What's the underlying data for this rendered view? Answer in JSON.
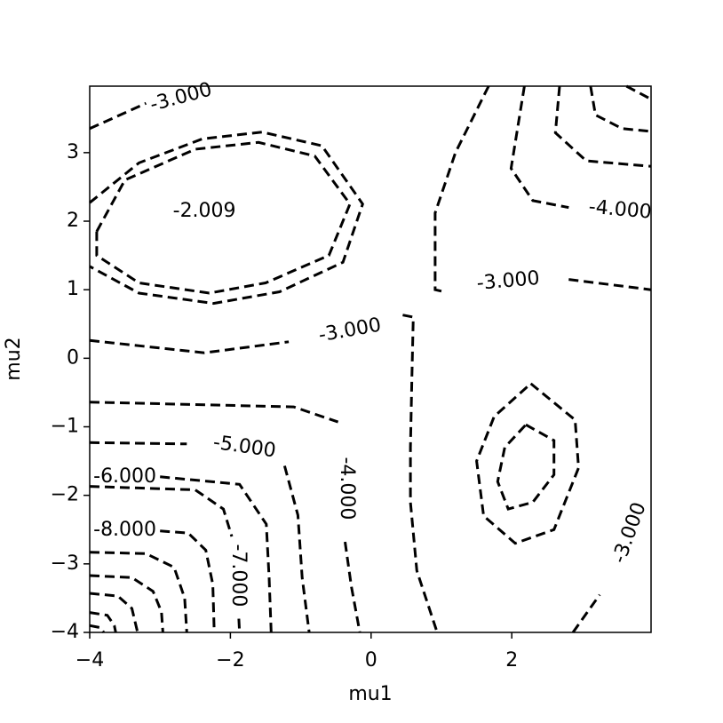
{
  "chart_data": {
    "type": "contour",
    "xlabel": "mu1",
    "ylabel": "mu2",
    "xlim": [
      -4,
      3.98
    ],
    "ylim": [
      -4,
      3.97
    ],
    "xticks": [
      {
        "value": -4,
        "label": "−4"
      },
      {
        "value": -2,
        "label": "−2"
      },
      0,
      2
    ],
    "yticks": [
      {
        "value": -4,
        "label": "−4"
      },
      {
        "value": -3,
        "label": "−3"
      },
      {
        "value": -2,
        "label": "−2"
      },
      {
        "value": -1,
        "label": "−1"
      },
      0,
      1,
      2,
      3
    ],
    "color": "#000000",
    "contours": [
      {
        "x": [
          -4,
          -3.2
        ],
        "y": [
          3.35,
          3.72
        ]
      },
      {
        "x": [
          -4,
          -3.3,
          -2.4,
          -1.55,
          -0.7,
          -0.12,
          -0.4,
          -1.3,
          -2.24,
          -3.3,
          -4
        ],
        "y": [
          2.27,
          2.85,
          3.2,
          3.3,
          3.1,
          2.25,
          1.4,
          0.97,
          0.8,
          0.95,
          1.34
        ]
      },
      {
        "x": [
          -3.9,
          -3.5,
          -2.5,
          -1.6,
          -0.8,
          -0.3,
          -0.6,
          -1.5,
          -2.3,
          -3.3,
          -3.9,
          -3.9
        ],
        "y": [
          1.85,
          2.6,
          3.05,
          3.15,
          2.95,
          2.25,
          1.5,
          1.1,
          0.95,
          1.1,
          1.5,
          1.85
        ]
      },
      {
        "x": [
          -4,
          -2.37,
          -1.17,
          null,
          0.45,
          0.6,
          0.58,
          0.56,
          0.56,
          0.65,
          0.94
        ],
        "y": [
          0.26,
          0.08,
          0.24,
          null,
          0.63,
          0.6,
          -0.3,
          -1.3,
          -2.1,
          -3.1,
          -4
        ]
      },
      {
        "x": [
          1.67,
          1.2,
          0.91,
          0.91,
          1.04,
          null,
          2.81,
          3.98
        ],
        "y": [
          3.97,
          3.0,
          2.12,
          1.0,
          0.97,
          null,
          1.15,
          1.0
        ]
      },
      {
        "x": [
          2.18,
          1.99,
          2.3,
          2.81
        ],
        "y": [
          3.97,
          2.77,
          2.3,
          2.2
        ]
      },
      {
        "x": [
          2.68,
          2.62,
          3.06,
          3.98
        ],
        "y": [
          3.97,
          3.29,
          2.88,
          2.8
        ]
      },
      {
        "x": [
          3.12,
          3.19,
          3.57,
          3.98
        ],
        "y": [
          3.97,
          3.55,
          3.35,
          3.31
        ]
      },
      {
        "x": [
          3.63,
          3.98
        ],
        "y": [
          3.97,
          3.78
        ]
      },
      {
        "x": [
          2.87,
          3.25
        ],
        "y": [
          -4,
          -3.45
        ]
      },
      {
        "x": [
          2.27,
          2.9,
          2.95,
          2.6,
          2.05,
          1.6,
          1.5,
          1.75,
          2.27
        ],
        "y": [
          -0.37,
          -0.9,
          -1.6,
          -2.5,
          -2.7,
          -2.3,
          -1.5,
          -0.85,
          -0.37
        ]
      },
      {
        "x": [
          2.2,
          2.6,
          2.6,
          2.3,
          1.95,
          1.8,
          1.9,
          2.2
        ],
        "y": [
          -0.97,
          -1.2,
          -1.7,
          -2.1,
          -2.2,
          -1.8,
          -1.3,
          -0.97
        ]
      },
      {
        "x": [
          -4,
          -1.1,
          -0.47,
          null,
          -0.37,
          -0.28,
          -0.16
        ],
        "y": [
          -0.64,
          -0.71,
          -0.93,
          null,
          -2.68,
          -3.33,
          -4
        ]
      },
      {
        "x": [
          -4,
          -2.62,
          null,
          -1.23,
          -1.04,
          -0.98,
          -0.88
        ],
        "y": [
          -1.23,
          -1.25,
          null,
          -1.57,
          -2.29,
          -3.2,
          -4
        ]
      },
      {
        "x": [
          -3.0,
          -1.87,
          -1.49,
          -1.45,
          -1.42
        ],
        "y": [
          -1.73,
          -1.84,
          -2.42,
          -3.2,
          -4
        ]
      },
      {
        "x": [
          -4,
          -2.5,
          -2.1,
          -1.98,
          null,
          -1.88,
          -1.87
        ],
        "y": [
          -1.87,
          -1.92,
          -2.2,
          -2.6,
          null,
          -3.8,
          -4
        ]
      },
      {
        "x": [
          -3.0,
          -2.6,
          -2.35,
          -2.25,
          -2.23
        ],
        "y": [
          -2.52,
          -2.55,
          -2.8,
          -3.3,
          -4
        ]
      },
      {
        "x": [
          -4,
          -3.2,
          -2.8,
          -2.65,
          -2.62
        ],
        "y": [
          -2.83,
          -2.85,
          -3.05,
          -3.5,
          -4
        ]
      },
      {
        "x": [
          -4,
          -3.4,
          -3.1,
          -2.98,
          -2.96
        ],
        "y": [
          -3.17,
          -3.2,
          -3.4,
          -3.7,
          -4
        ]
      },
      {
        "x": [
          -4,
          -3.6,
          -3.4,
          -3.32
        ],
        "y": [
          -3.43,
          -3.47,
          -3.65,
          -4
        ]
      },
      {
        "x": [
          -4,
          -3.75,
          -3.65,
          -3.63
        ],
        "y": [
          -3.71,
          -3.75,
          -3.9,
          -4
        ]
      },
      {
        "x": [
          -4,
          -3.85,
          -3.8
        ],
        "y": [
          -3.9,
          -3.93,
          -4
        ]
      }
    ],
    "contour_labels": [
      {
        "text": "-3.000",
        "x": -2.7,
        "y": 3.8
      },
      {
        "text": "-2.009",
        "x": -2.37,
        "y": 2.14
      },
      {
        "text": "-3.000",
        "x": -0.3,
        "y": 0.4
      },
      {
        "text": "-3.000",
        "x": 1.95,
        "y": 1.12
      },
      {
        "text": "-4.000",
        "x": 3.54,
        "y": 2.16
      },
      {
        "text": "-3.000",
        "x": 3.68,
        "y": -2.55
      },
      {
        "text": "-4.000",
        "x": -0.35,
        "y": -1.9
      },
      {
        "text": "-5.000",
        "x": -1.8,
        "y": -1.3
      },
      {
        "text": "-6.000",
        "x": -3.5,
        "y": -1.73
      },
      {
        "text": "-8.000",
        "x": -3.5,
        "y": -2.51
      },
      {
        "text": "-7.000",
        "x": -1.89,
        "y": -3.17
      }
    ]
  }
}
